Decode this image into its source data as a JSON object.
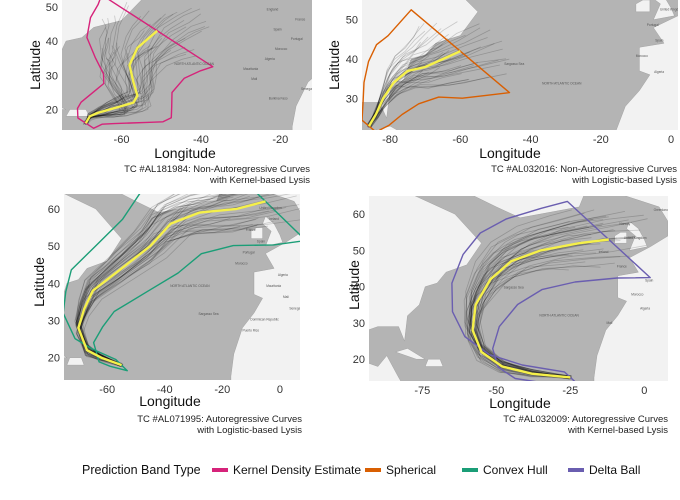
{
  "legend": {
    "title": "Prediction Band Type",
    "items": [
      {
        "label": "Kernel Density Estimate",
        "color": "#d6237a"
      },
      {
        "label": "Spherical",
        "color": "#d95f02"
      },
      {
        "label": "Convex Hull",
        "color": "#1b9e77"
      },
      {
        "label": "Delta Ball",
        "color": "#6a5eb0"
      }
    ]
  },
  "chart_data": [
    {
      "type": "line",
      "xlabel": "Longitude",
      "ylabel": "Latitude",
      "xticks": [
        "-60",
        "-40",
        "-20"
      ],
      "yticks": [
        "50",
        "40",
        "30",
        "20"
      ],
      "xlim": [
        -75,
        -12
      ],
      "ylim": [
        14,
        52
      ],
      "caption": [
        "TC #AL181984: Non-Autoregressive Curves",
        "with Kernel-based Lysis"
      ],
      "band": "Kernel Density Estimate",
      "band_color": "#d6237a",
      "true_track": [
        [
          -69,
          16
        ],
        [
          -68,
          18
        ],
        [
          -66,
          19
        ],
        [
          -63,
          20
        ],
        [
          -60,
          21
        ],
        [
          -57,
          22
        ],
        [
          -56,
          24
        ],
        [
          -57,
          28
        ],
        [
          -58,
          33
        ],
        [
          -56,
          38
        ],
        [
          -53,
          41
        ],
        [
          -51,
          43
        ]
      ],
      "map_labels": [
        "England",
        "France",
        "Spain",
        "Portugal",
        "Morocco",
        "Algeria",
        "Mauritania",
        "Mali",
        "Senegal",
        "Burkina Faso",
        "NORTH ATLANTIC OCEAN"
      ]
    },
    {
      "type": "line",
      "xlabel": "Longitude",
      "ylabel": "Latitude",
      "xticks": [
        "-80",
        "-60",
        "-40",
        "-20",
        "0"
      ],
      "yticks": [
        "50",
        "40",
        "30"
      ],
      "xlim": [
        -88,
        2
      ],
      "ylim": [
        22,
        55
      ],
      "caption": [
        "TC #AL032016: Non-Autoregressive Curves",
        "with Logistic-based Lysis"
      ],
      "band": "Spherical",
      "band_color": "#d95f02",
      "true_track": [
        [
          -86,
          23
        ],
        [
          -84,
          26
        ],
        [
          -82,
          30
        ],
        [
          -79,
          34
        ],
        [
          -75,
          37
        ],
        [
          -70,
          38
        ],
        [
          -65,
          40
        ],
        [
          -60,
          42
        ]
      ],
      "map_labels": [
        "United Kingdom",
        "Portugal",
        "Spain",
        "Morocco",
        "Algeria",
        "NORTH ATLANTIC OCEAN",
        "Sargasso Sea"
      ]
    },
    {
      "type": "line",
      "xlabel": "Longitude",
      "ylabel": "Latitude",
      "xticks": [
        "-60",
        "-40",
        "-20",
        "0"
      ],
      "yticks": [
        "60",
        "50",
        "40",
        "30",
        "20"
      ],
      "xlim": [
        -75,
        7
      ],
      "ylim": [
        14,
        64
      ],
      "caption": [
        "TC #AL071995: Autoregressive Curves",
        "with Logistic-based Lysis"
      ],
      "band": "Convex Hull",
      "band_color": "#1b9e77",
      "true_track": [
        [
          -55,
          18
        ],
        [
          -62,
          20
        ],
        [
          -67,
          22
        ],
        [
          -70,
          28
        ],
        [
          -68,
          33
        ],
        [
          -65,
          38
        ],
        [
          -55,
          44
        ],
        [
          -45,
          50
        ],
        [
          -38,
          56
        ],
        [
          -28,
          59
        ],
        [
          -15,
          60
        ],
        [
          -5,
          62
        ]
      ],
      "map_labels": [
        "United Kingdom",
        "Ireland",
        "France",
        "Spain",
        "Portugal",
        "Morocco",
        "Algeria",
        "Mauritania",
        "Mali",
        "Senegal",
        "Dominican Republic",
        "Puerto Rico",
        "NORTH ATLANTIC OCEAN",
        "Sargasso Sea"
      ]
    },
    {
      "type": "line",
      "xlabel": "Longitude",
      "ylabel": "Latitude",
      "xticks": [
        "-75",
        "-50",
        "-25",
        "0"
      ],
      "yticks": [
        "60",
        "50",
        "40",
        "30",
        "20"
      ],
      "xlim": [
        -93,
        8
      ],
      "ylim": [
        14,
        65
      ],
      "caption": [
        "TC #AL032009: Autoregressive Curves",
        "with Kernel-based Lysis"
      ],
      "band": "Delta Ball",
      "band_color": "#6a5eb0",
      "true_track": [
        [
          -25,
          15
        ],
        [
          -38,
          16
        ],
        [
          -48,
          18
        ],
        [
          -55,
          22
        ],
        [
          -58,
          28
        ],
        [
          -57,
          35
        ],
        [
          -52,
          42
        ],
        [
          -45,
          47
        ],
        [
          -35,
          50
        ],
        [
          -22,
          52
        ],
        [
          -12,
          53
        ]
      ],
      "map_labels": [
        "Greenland",
        "Norway",
        "United Kingdom",
        "Ireland",
        "France",
        "Spain",
        "Morocco",
        "Algeria",
        "Mali",
        "NORTH ATLANTIC OCEAN",
        "Sargasso Sea"
      ]
    }
  ]
}
